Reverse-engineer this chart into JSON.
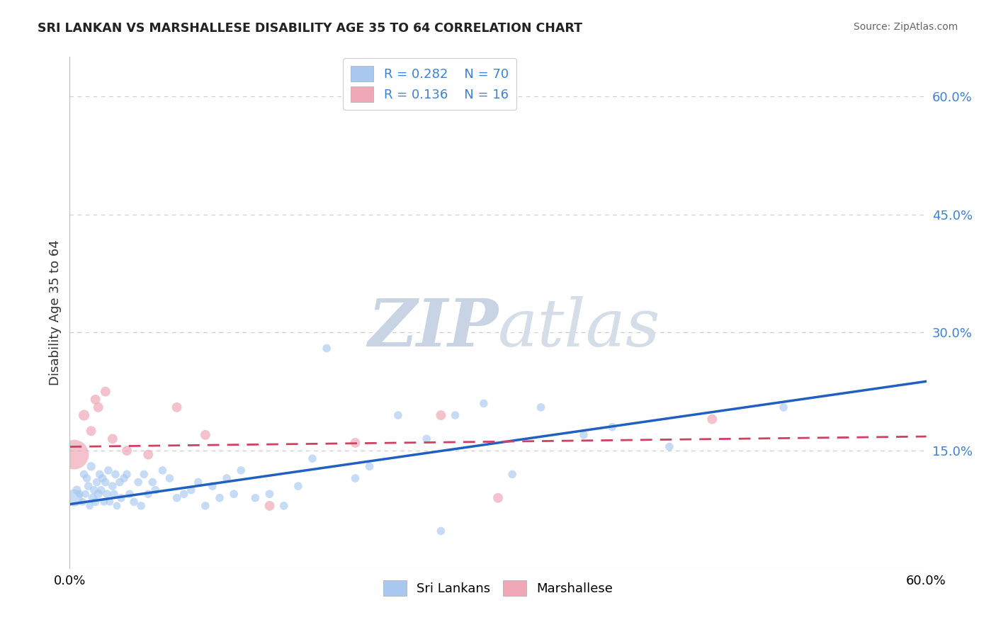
{
  "title": "SRI LANKAN VS MARSHALLESE DISABILITY AGE 35 TO 64 CORRELATION CHART",
  "source_text": "Source: ZipAtlas.com",
  "ylabel": "Disability Age 35 to 64",
  "xlim": [
    0.0,
    0.6
  ],
  "ylim": [
    0.0,
    0.65
  ],
  "y_ticks_right": [
    0.15,
    0.3,
    0.45,
    0.6
  ],
  "sri_lankan_color": "#a8c8f0",
  "marshallese_color": "#f0a8b8",
  "sri_lankan_line_color": "#2060c0",
  "marshallese_line_color": "#d04060",
  "watermark_color_zip": "#c0cfe0",
  "watermark_color_atlas": "#c8d8e8",
  "legend_R1": "R = 0.282",
  "legend_N1": "N = 70",
  "legend_R2": "R = 0.136",
  "legend_N2": "N = 16",
  "grid_color": "#cccccc",
  "background_color": "#ffffff",
  "sri_lankan_x": [
    0.003,
    0.005,
    0.007,
    0.009,
    0.01,
    0.011,
    0.012,
    0.013,
    0.014,
    0.015,
    0.016,
    0.017,
    0.018,
    0.019,
    0.02,
    0.021,
    0.022,
    0.023,
    0.024,
    0.025,
    0.026,
    0.027,
    0.028,
    0.03,
    0.031,
    0.032,
    0.033,
    0.035,
    0.036,
    0.038,
    0.04,
    0.042,
    0.045,
    0.048,
    0.05,
    0.052,
    0.055,
    0.058,
    0.06,
    0.065,
    0.07,
    0.075,
    0.08,
    0.085,
    0.09,
    0.095,
    0.1,
    0.105,
    0.11,
    0.115,
    0.12,
    0.13,
    0.14,
    0.15,
    0.16,
    0.17,
    0.18,
    0.2,
    0.21,
    0.23,
    0.25,
    0.27,
    0.29,
    0.31,
    0.33,
    0.36,
    0.38,
    0.42,
    0.5,
    0.26
  ],
  "sri_lankan_y": [
    0.09,
    0.1,
    0.095,
    0.085,
    0.12,
    0.095,
    0.115,
    0.105,
    0.08,
    0.13,
    0.09,
    0.1,
    0.085,
    0.11,
    0.095,
    0.12,
    0.1,
    0.115,
    0.085,
    0.11,
    0.095,
    0.125,
    0.085,
    0.105,
    0.095,
    0.12,
    0.08,
    0.11,
    0.09,
    0.115,
    0.12,
    0.095,
    0.085,
    0.11,
    0.08,
    0.12,
    0.095,
    0.11,
    0.1,
    0.125,
    0.115,
    0.09,
    0.095,
    0.1,
    0.11,
    0.08,
    0.105,
    0.09,
    0.115,
    0.095,
    0.125,
    0.09,
    0.095,
    0.08,
    0.105,
    0.14,
    0.28,
    0.115,
    0.13,
    0.195,
    0.165,
    0.195,
    0.21,
    0.12,
    0.205,
    0.17,
    0.18,
    0.155,
    0.205,
    0.048
  ],
  "sri_lankan_sizes": [
    300,
    80,
    60,
    60,
    70,
    60,
    70,
    70,
    60,
    80,
    80,
    70,
    70,
    70,
    80,
    70,
    70,
    70,
    60,
    70,
    70,
    70,
    60,
    70,
    70,
    70,
    60,
    70,
    70,
    70,
    70,
    70,
    70,
    70,
    70,
    70,
    70,
    70,
    70,
    70,
    70,
    70,
    70,
    70,
    70,
    70,
    70,
    70,
    70,
    70,
    70,
    70,
    70,
    70,
    70,
    70,
    70,
    70,
    70,
    70,
    70,
    70,
    70,
    70,
    70,
    70,
    70,
    70,
    70,
    70
  ],
  "marshallese_x": [
    0.003,
    0.01,
    0.015,
    0.018,
    0.02,
    0.025,
    0.03,
    0.04,
    0.055,
    0.075,
    0.095,
    0.14,
    0.2,
    0.26,
    0.3,
    0.45
  ],
  "marshallese_y": [
    0.145,
    0.195,
    0.175,
    0.215,
    0.205,
    0.225,
    0.165,
    0.15,
    0.145,
    0.205,
    0.17,
    0.08,
    0.16,
    0.195,
    0.09,
    0.19
  ],
  "marshallese_sizes": [
    900,
    120,
    100,
    100,
    100,
    100,
    100,
    100,
    100,
    100,
    100,
    100,
    100,
    100,
    100,
    100
  ],
  "sri_line_x0": 0.0,
  "sri_line_y0": 0.082,
  "sri_line_x1": 0.6,
  "sri_line_y1": 0.238,
  "mar_line_x0": 0.0,
  "mar_line_y0": 0.155,
  "mar_line_x1": 0.6,
  "mar_line_y1": 0.168
}
